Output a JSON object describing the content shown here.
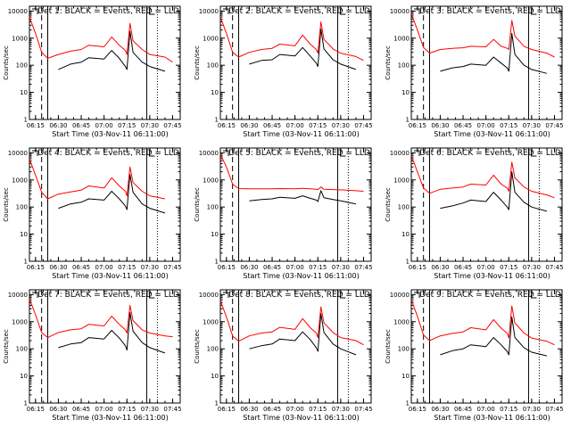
{
  "figure": {
    "title_template": "Det {n} BLACK = Events, RED = LLD",
    "ylabel": "Counts/sec",
    "xlabel": "Start Time (03-Nov-11 06:11:00)",
    "x_tick_labels": [
      "06:15",
      "06:30",
      "06:45",
      "07:00",
      "07:15",
      "07:30",
      "07:45"
    ],
    "y_tick_labels": [
      "1",
      "10",
      "100",
      "1000",
      "10000"
    ],
    "colors": {
      "events": "#000000",
      "lld": "#ff0000",
      "axes": "#000000"
    }
  },
  "chart_data": [
    {
      "type": "line",
      "title": "Det 1: BLACK = Events, RED = LLD",
      "xlabel": "Start Time (03-Nov-11 06:11:00)",
      "ylabel": "Counts/sec",
      "xlim": [
        "06:11",
        "07:50"
      ],
      "ylim": [
        1,
        15000
      ],
      "y_scale": "log",
      "x": [
        "06:11",
        "06:15",
        "06:19",
        "06:23",
        "06:30",
        "06:38",
        "06:45",
        "06:50",
        "07:00",
        "07:05",
        "07:10",
        "07:14",
        "07:15",
        "07:17",
        "07:19",
        "07:25",
        "07:30",
        "07:40",
        "07:45"
      ],
      "series": [
        {
          "name": "BLACK = Events",
          "values": [
            null,
            null,
            null,
            null,
            70,
            110,
            130,
            190,
            170,
            350,
            180,
            90,
            70,
            1800,
            300,
            130,
            90,
            60,
            null
          ]
        },
        {
          "name": "RED = LLD",
          "values": [
            6000,
            1500,
            300,
            180,
            250,
            330,
            380,
            550,
            480,
            1100,
            550,
            350,
            250,
            3500,
            800,
            380,
            250,
            200,
            130
          ]
        }
      ]
    },
    {
      "type": "line",
      "title": "Det 2: BLACK = Events, RED = LLD",
      "xlabel": "Start Time (03-Nov-11 06:11:00)",
      "ylabel": "Counts/sec",
      "xlim": [
        "06:11",
        "07:50"
      ],
      "ylim": [
        1,
        15000
      ],
      "y_scale": "log",
      "x": [
        "06:11",
        "06:15",
        "06:19",
        "06:23",
        "06:30",
        "06:38",
        "06:45",
        "06:50",
        "07:00",
        "07:05",
        "07:10",
        "07:14",
        "07:15",
        "07:17",
        "07:19",
        "07:25",
        "07:30",
        "07:40",
        "07:45"
      ],
      "series": [
        {
          "name": "BLACK = Events",
          "values": [
            null,
            null,
            null,
            null,
            110,
            150,
            160,
            250,
            220,
            450,
            220,
            120,
            90,
            2200,
            400,
            160,
            110,
            70,
            null
          ]
        },
        {
          "name": "RED = LLD",
          "values": [
            6000,
            1500,
            300,
            200,
            300,
            380,
            420,
            600,
            520,
            1300,
            600,
            380,
            280,
            4000,
            900,
            400,
            280,
            210,
            150
          ]
        }
      ]
    },
    {
      "type": "line",
      "title": "Det 3: BLACK = Events, RED = LLD",
      "xlabel": "Start Time (03-Nov-11 06:11:00)",
      "ylabel": "Counts/sec",
      "xlim": [
        "06:11",
        "07:50"
      ],
      "ylim": [
        1,
        15000
      ],
      "y_scale": "log",
      "x": [
        "06:11",
        "06:15",
        "06:19",
        "06:23",
        "06:30",
        "06:38",
        "06:45",
        "06:50",
        "07:00",
        "07:05",
        "07:10",
        "07:14",
        "07:15",
        "07:17",
        "07:19",
        "07:25",
        "07:30",
        "07:40",
        "07:45"
      ],
      "series": [
        {
          "name": "BLACK = Events",
          "values": [
            null,
            null,
            null,
            null,
            60,
            80,
            90,
            110,
            100,
            200,
            120,
            80,
            60,
            1500,
            250,
            100,
            70,
            50,
            null
          ]
        },
        {
          "name": "RED = LLD",
          "values": [
            8000,
            2000,
            450,
            280,
            380,
            420,
            440,
            500,
            480,
            900,
            500,
            420,
            380,
            4500,
            1200,
            500,
            380,
            280,
            200
          ]
        }
      ]
    },
    {
      "type": "line",
      "title": "Det 4: BLACK = Events, RED = LLD",
      "xlabel": "Start Time (03-Nov-11 06:11:00)",
      "ylabel": "Counts/sec",
      "xlim": [
        "06:11",
        "07:50"
      ],
      "ylim": [
        1,
        15000
      ],
      "y_scale": "log",
      "x": [
        "06:11",
        "06:15",
        "06:19",
        "06:23",
        "06:30",
        "06:38",
        "06:45",
        "06:50",
        "07:00",
        "07:05",
        "07:10",
        "07:14",
        "07:15",
        "07:17",
        "07:19",
        "07:25",
        "07:30",
        "07:40",
        "07:45"
      ],
      "series": [
        {
          "name": "BLACK = Events",
          "values": [
            null,
            null,
            null,
            null,
            90,
            130,
            150,
            200,
            180,
            380,
            200,
            110,
            80,
            1600,
            350,
            130,
            90,
            60,
            null
          ]
        },
        {
          "name": "RED = LLD",
          "values": [
            6000,
            1500,
            350,
            200,
            300,
            360,
            420,
            600,
            500,
            1200,
            600,
            380,
            260,
            3000,
            800,
            380,
            260,
            200,
            null
          ]
        }
      ]
    },
    {
      "type": "line",
      "title": "Det 5: BLACK = Events, RED = LLD",
      "xlabel": "Start Time (03-Nov-11 06:11:00)",
      "ylabel": "Counts/sec",
      "xlim": [
        "06:11",
        "07:50"
      ],
      "ylim": [
        1,
        15000
      ],
      "y_scale": "log",
      "x": [
        "06:11",
        "06:15",
        "06:19",
        "06:23",
        "06:30",
        "06:38",
        "06:45",
        "06:50",
        "07:00",
        "07:05",
        "07:10",
        "07:14",
        "07:15",
        "07:17",
        "07:19",
        "07:25",
        "07:30",
        "07:40",
        "07:45"
      ],
      "series": [
        {
          "name": "BLACK = Events",
          "values": [
            null,
            null,
            null,
            null,
            170,
            190,
            200,
            230,
            210,
            260,
            210,
            180,
            160,
            400,
            220,
            190,
            170,
            130,
            null
          ]
        },
        {
          "name": "RED = LLD",
          "values": [
            9000,
            3000,
            700,
            480,
            470,
            470,
            470,
            480,
            470,
            490,
            470,
            450,
            440,
            550,
            450,
            440,
            430,
            400,
            380
          ]
        }
      ]
    },
    {
      "type": "line",
      "title": "Det 6: BLACK = Events, RED = LLD",
      "xlabel": "Start Time (03-Nov-11 06:11:00)",
      "ylabel": "Counts/sec",
      "xlim": [
        "06:11",
        "07:50"
      ],
      "ylim": [
        1,
        15000
      ],
      "y_scale": "log",
      "x": [
        "06:11",
        "06:15",
        "06:19",
        "06:23",
        "06:30",
        "06:38",
        "06:45",
        "06:50",
        "07:00",
        "07:05",
        "07:10",
        "07:14",
        "07:15",
        "07:17",
        "07:19",
        "07:25",
        "07:30",
        "07:40",
        "07:45"
      ],
      "series": [
        {
          "name": "BLACK = Events",
          "values": [
            null,
            null,
            null,
            null,
            90,
            110,
            140,
            180,
            160,
            350,
            180,
            100,
            80,
            2000,
            350,
            150,
            100,
            70,
            null
          ]
        },
        {
          "name": "RED = LLD",
          "values": [
            8000,
            2000,
            500,
            320,
            450,
            500,
            550,
            700,
            650,
            1500,
            700,
            500,
            380,
            4500,
            1200,
            550,
            380,
            280,
            220
          ]
        }
      ]
    },
    {
      "type": "line",
      "title": "Det 7: BLACK = Events, RED = LLD",
      "xlabel": "Start Time (03-Nov-11 06:11:00)",
      "ylabel": "Counts/sec",
      "xlim": [
        "06:11",
        "07:50"
      ],
      "ylim": [
        1,
        15000
      ],
      "y_scale": "log",
      "x": [
        "06:11",
        "06:15",
        "06:19",
        "06:23",
        "06:30",
        "06:38",
        "06:45",
        "06:50",
        "07:00",
        "07:05",
        "07:10",
        "07:14",
        "07:15",
        "07:17",
        "07:19",
        "07:25",
        "07:30",
        "07:40",
        "07:45"
      ],
      "series": [
        {
          "name": "BLACK = Events",
          "values": [
            null,
            null,
            null,
            null,
            110,
            150,
            170,
            260,
            230,
            480,
            250,
            130,
            90,
            2200,
            450,
            170,
            110,
            70,
            null
          ]
        },
        {
          "name": "RED = LLD",
          "values": [
            7000,
            1800,
            400,
            260,
            400,
            500,
            550,
            800,
            700,
            1600,
            800,
            500,
            380,
            4000,
            1100,
            500,
            380,
            300,
            280
          ]
        }
      ]
    },
    {
      "type": "line",
      "title": "Det 8: BLACK = Events, RED = LLD",
      "xlabel": "Start Time (03-Nov-11 06:11:00)",
      "ylabel": "Counts/sec",
      "xlim": [
        "06:11",
        "07:50"
      ],
      "ylim": [
        1,
        15000
      ],
      "y_scale": "log",
      "x": [
        "06:11",
        "06:15",
        "06:19",
        "06:23",
        "06:30",
        "06:38",
        "06:45",
        "06:50",
        "07:00",
        "07:05",
        "07:10",
        "07:14",
        "07:15",
        "07:17",
        "07:19",
        "07:25",
        "07:30",
        "07:40",
        "07:45"
      ],
      "series": [
        {
          "name": "BLACK = Events",
          "values": [
            null,
            null,
            null,
            null,
            100,
            130,
            150,
            230,
            200,
            420,
            220,
            110,
            80,
            2000,
            400,
            150,
            100,
            60,
            null
          ]
        },
        {
          "name": "RED = LLD",
          "values": [
            6000,
            1500,
            300,
            190,
            300,
            380,
            420,
            620,
            520,
            1300,
            600,
            380,
            260,
            3500,
            900,
            400,
            260,
            200,
            140
          ]
        }
      ]
    },
    {
      "type": "line",
      "title": "Det 9: BLACK = Events, RED = LLD",
      "xlabel": "Start Time (03-Nov-11 06:11:00)",
      "ylabel": "Counts/sec",
      "xlim": [
        "06:11",
        "07:50"
      ],
      "ylim": [
        1,
        15000
      ],
      "y_scale": "log",
      "x": [
        "06:11",
        "06:15",
        "06:19",
        "06:23",
        "06:30",
        "06:38",
        "06:45",
        "06:50",
        "07:00",
        "07:05",
        "07:10",
        "07:14",
        "07:15",
        "07:17",
        "07:19",
        "07:25",
        "07:30",
        "07:40",
        "07:45"
      ],
      "series": [
        {
          "name": "BLACK = Events",
          "values": [
            null,
            null,
            null,
            null,
            60,
            85,
            100,
            140,
            120,
            260,
            140,
            80,
            60,
            1500,
            260,
            110,
            75,
            55,
            null
          ]
        },
        {
          "name": "RED = LLD",
          "values": [
            6500,
            1600,
            320,
            200,
            300,
            370,
            420,
            600,
            500,
            1200,
            580,
            370,
            250,
            3800,
            900,
            380,
            250,
            190,
            140
          ]
        }
      ]
    }
  ]
}
